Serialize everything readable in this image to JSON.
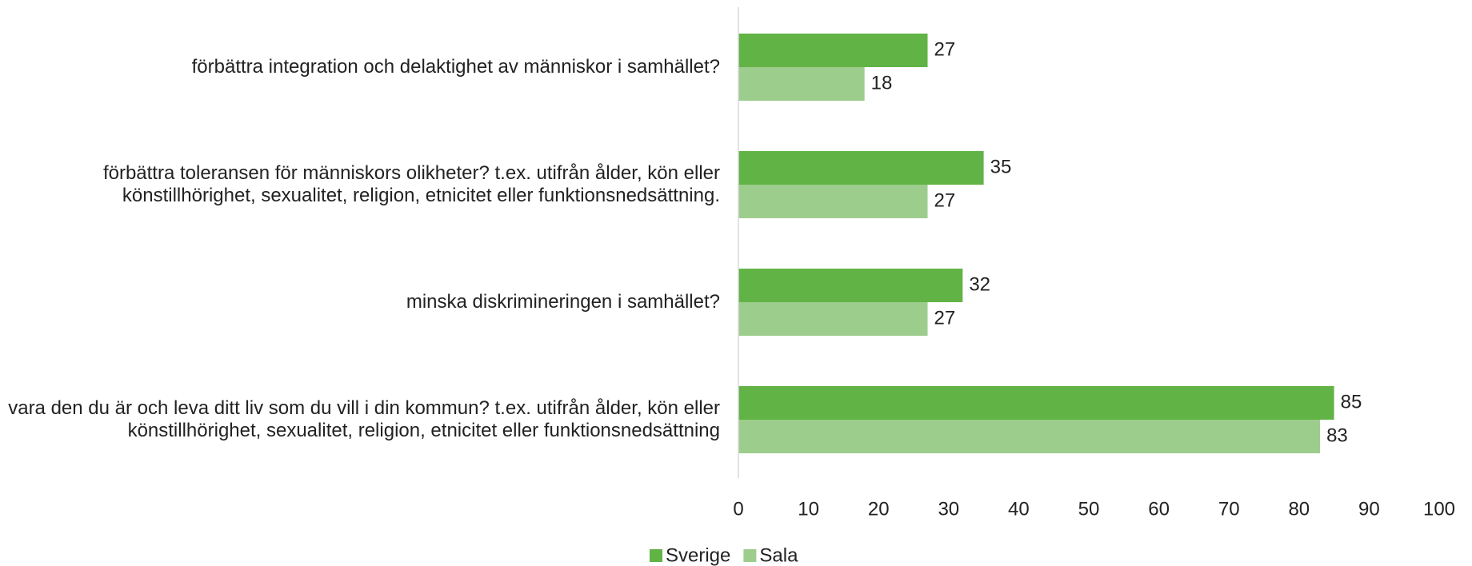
{
  "chart_data": {
    "type": "bar",
    "orientation": "horizontal",
    "categories": [
      "förbättra integration och delaktighet av människor i samhället?",
      "förbättra toleransen för människors olikheter? t.ex. utifrån ålder, kön eller könstillhörighet, sexualitet, religion, etnicitet eller funktionsnedsättning.",
      "minska diskrimineringen i samhället?",
      "vara den du är och leva ditt liv som du vill i din kommun? t.ex. utifrån ålder, kön eller könstillhörighet, sexualitet, religion, etnicitet eller funktionsnedsättning"
    ],
    "series": [
      {
        "name": "Sverige",
        "color": "#62b346",
        "values": [
          27,
          35,
          32,
          85
        ]
      },
      {
        "name": "Sala",
        "color": "#9dcd8d",
        "values": [
          18,
          27,
          27,
          83
        ]
      }
    ],
    "xlim": [
      0,
      100
    ],
    "xticks": [
      0,
      10,
      20,
      30,
      40,
      50,
      60,
      70,
      80,
      90,
      100
    ],
    "grid": false,
    "legend": "bottom"
  }
}
